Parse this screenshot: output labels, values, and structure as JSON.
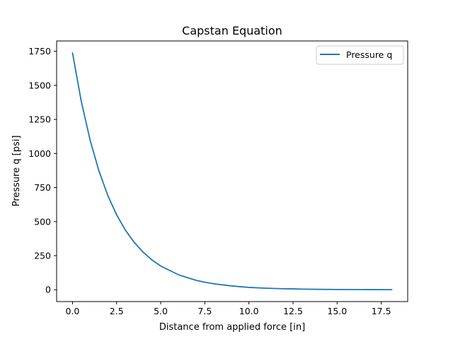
{
  "chart_data": {
    "type": "line",
    "title": "Capstan Equation",
    "xlabel": "Distance from applied force [in]",
    "ylabel": "Pressure q [psi]",
    "xlim": [
      -0.9,
      19.0
    ],
    "ylim": [
      -87,
      1826
    ],
    "xticks": [
      0.0,
      2.5,
      5.0,
      7.5,
      10.0,
      12.5,
      15.0,
      17.5
    ],
    "xtick_labels": [
      "0.0",
      "2.5",
      "5.0",
      "7.5",
      "10.0",
      "12.5",
      "15.0",
      "17.5"
    ],
    "yticks": [
      0,
      250,
      500,
      750,
      1000,
      1250,
      1500,
      1750
    ],
    "ytick_labels": [
      "0",
      "250",
      "500",
      "750",
      "1000",
      "1250",
      "1500",
      "1750"
    ],
    "grid": false,
    "legend": {
      "position": "top-right",
      "entries": [
        "Pressure q"
      ]
    },
    "series": [
      {
        "name": "Pressure q",
        "color": "#1f77b4",
        "x": [
          0.0,
          0.5,
          1.0,
          1.5,
          2.0,
          2.5,
          3.0,
          3.5,
          4.0,
          4.5,
          5.0,
          6.0,
          7.0,
          7.5,
          8.0,
          9.0,
          10.0,
          11.0,
          12.0,
          12.5,
          13.0,
          14.0,
          15.0,
          16.0,
          17.0,
          18.1
        ],
        "y": [
          1738,
          1381,
          1097,
          871,
          692,
          550,
          437,
          347,
          276,
          219,
          174,
          110,
          69,
          55,
          44,
          28,
          17,
          11,
          7,
          6,
          4.4,
          2.8,
          1.7,
          1.1,
          0.7,
          0.4
        ]
      }
    ]
  }
}
